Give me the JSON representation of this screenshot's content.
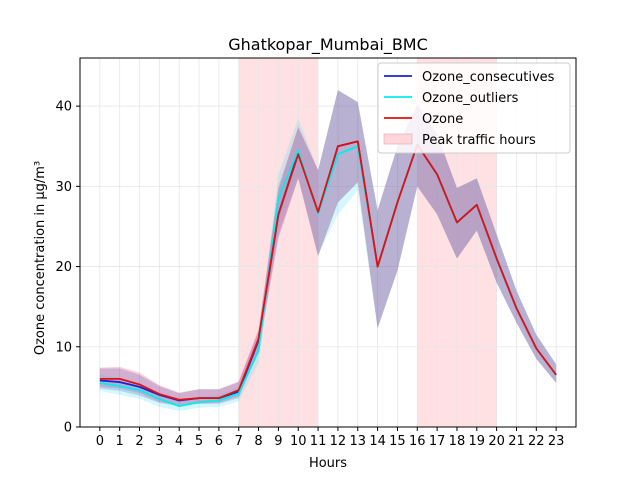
{
  "chart_data": {
    "type": "line",
    "title": "Ghatkopar_Mumbai_BMC",
    "xlabel": "Hours",
    "ylabel": "Ozone concentration in µg/m³",
    "x": [
      0,
      1,
      2,
      3,
      4,
      5,
      6,
      7,
      8,
      9,
      10,
      11,
      12,
      13,
      14,
      15,
      16,
      17,
      18,
      19,
      20,
      21,
      22,
      23
    ],
    "xlim": [
      -1,
      24
    ],
    "ylim": [
      0,
      46
    ],
    "yticks": [
      0,
      10,
      20,
      30,
      40
    ],
    "grid": true,
    "legend_position": "top-right",
    "shaded_regions": [
      {
        "name": "Peak traffic hours",
        "x_start": 7,
        "x_end": 11,
        "color": "#ffd6da"
      },
      {
        "name": "Peak traffic hours",
        "x_start": 16,
        "x_end": 20,
        "color": "#ffd6da"
      }
    ],
    "legend_patch_label": "Peak traffic hours",
    "series": [
      {
        "name": "Ozone_consecutives",
        "color": "#1f1fd6",
        "values": [
          5.8,
          5.6,
          5.0,
          4.0,
          3.3,
          3.6,
          3.6,
          4.4,
          10.8,
          26.5,
          34.2,
          26.7,
          35.0,
          35.6,
          20.0,
          28.0,
          35.2,
          31.5,
          25.5,
          27.7,
          21.0,
          14.8,
          9.8,
          6.5
        ],
        "lower": [
          4.8,
          4.5,
          3.9,
          3.0,
          2.6,
          2.9,
          2.9,
          3.6,
          9.5,
          23.5,
          31.0,
          21.3,
          28.0,
          30.5,
          12.3,
          19.5,
          30.0,
          26.5,
          21.0,
          24.5,
          18.0,
          13.0,
          8.5,
          5.5
        ],
        "upper": [
          7.3,
          7.3,
          6.5,
          5.1,
          4.2,
          4.7,
          4.7,
          5.6,
          12.0,
          30.0,
          37.3,
          32.0,
          42.0,
          40.5,
          27.0,
          35.0,
          40.2,
          36.5,
          29.8,
          31.0,
          24.0,
          17.0,
          11.5,
          7.8
        ]
      },
      {
        "name": "Ozone_outliers",
        "color": "#00eef0",
        "values": [
          5.5,
          5.1,
          4.6,
          3.5,
          2.6,
          3.1,
          3.3,
          4.2,
          9.5,
          28.4,
          34.5,
          26.6,
          34.0,
          35.0,
          20.0,
          28.0,
          35.2,
          31.5,
          25.5,
          27.7,
          21.0,
          14.8,
          9.8,
          6.5
        ],
        "lower": [
          4.5,
          4.0,
          3.5,
          2.5,
          2.0,
          2.4,
          2.5,
          3.2,
          8.0,
          25.5,
          31.5,
          21.5,
          26.5,
          29.5,
          12.3,
          19.5,
          30.0,
          26.5,
          21.0,
          24.5,
          18.0,
          13.0,
          8.5,
          5.5
        ],
        "upper": [
          6.5,
          6.2,
          5.5,
          4.2,
          3.3,
          3.8,
          4.0,
          5.0,
          11.0,
          31.5,
          38.5,
          32.0,
          42.0,
          40.5,
          27.0,
          35.0,
          40.2,
          36.5,
          29.8,
          31.0,
          24.0,
          17.0,
          11.5,
          7.8
        ]
      },
      {
        "name": "Ozone",
        "color": "#e01010",
        "values": [
          6.0,
          6.0,
          5.3,
          4.1,
          3.4,
          3.6,
          3.6,
          4.6,
          11.0,
          26.5,
          34.0,
          26.8,
          35.0,
          35.6,
          20.0,
          28.0,
          35.2,
          31.5,
          25.5,
          27.7,
          21.0,
          14.8,
          9.8,
          6.5
        ],
        "lower": [
          5.0,
          4.8,
          4.2,
          3.1,
          2.7,
          2.9,
          3.0,
          3.8,
          9.8,
          24.0,
          31.0,
          21.3,
          28.0,
          30.5,
          12.3,
          19.5,
          30.0,
          26.5,
          21.0,
          24.5,
          18.0,
          13.0,
          8.5,
          5.5
        ],
        "upper": [
          7.4,
          7.5,
          6.8,
          5.2,
          4.3,
          4.7,
          4.7,
          5.7,
          12.2,
          29.5,
          37.5,
          32.0,
          42.0,
          40.5,
          27.0,
          35.0,
          40.2,
          36.5,
          29.8,
          31.0,
          24.0,
          17.0,
          11.5,
          7.8
        ]
      }
    ]
  }
}
